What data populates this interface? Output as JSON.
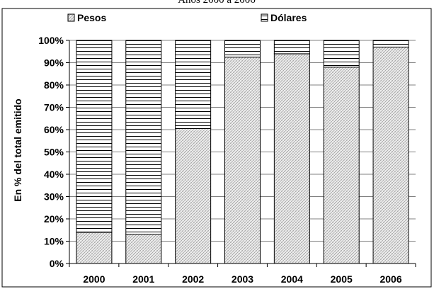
{
  "chart_data": {
    "type": "bar",
    "stacked": true,
    "percent_stacked": true,
    "title": "Años 2000 a 2006",
    "xlabel": "",
    "ylabel": "En % del total emitido",
    "categories": [
      "2000",
      "2001",
      "2002",
      "2003",
      "2004",
      "2005",
      "2006"
    ],
    "series": [
      {
        "name": "Pesos",
        "values": [
          14,
          13,
          60.5,
          92.5,
          94,
          88,
          97
        ],
        "pattern": "dots"
      },
      {
        "name": "Dólares",
        "values": [
          86,
          87,
          39.5,
          7.5,
          6,
          12,
          3
        ],
        "pattern": "horizontal-lines"
      }
    ],
    "ylim": [
      0,
      100
    ],
    "yticks": [
      "0%",
      "10%",
      "20%",
      "30%",
      "40%",
      "50%",
      "60%",
      "70%",
      "80%",
      "90%",
      "100%"
    ],
    "grid": true,
    "legend_position": "top"
  }
}
